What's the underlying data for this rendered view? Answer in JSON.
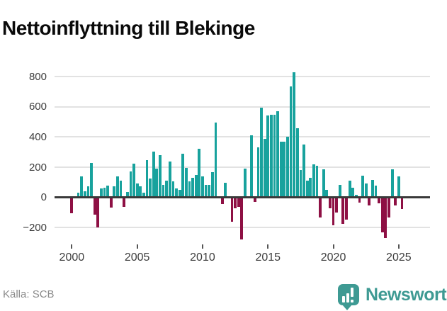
{
  "title": "Nettoinflyttning till Blekinge",
  "source": "Källa: SCB",
  "brand": {
    "name": "Newsworthy"
  },
  "colors": {
    "bar_positive": "#18a29d",
    "bar_negative": "#8e1044",
    "brand_teal": "#3e9a93",
    "grid": "#e2e2e2",
    "axis_line": "#3a3a3a",
    "title_text": "#0a0a0a",
    "axis_text": "#3d3d3d",
    "source_text": "#8a8a8a"
  },
  "chart_data": {
    "type": "bar",
    "title": "Nettoinflyttning till Blekinge",
    "xlabel": "",
    "ylabel": "",
    "grid": true,
    "legend": false,
    "ylim": [
      -300,
      860
    ],
    "yticks": [
      800,
      600,
      400,
      200,
      0,
      -200
    ],
    "x_tick_labels": [
      "2000",
      "2005",
      "2010",
      "2015",
      "2020",
      "2025"
    ],
    "x_tick_indices": [
      0,
      20,
      40,
      60,
      80,
      100
    ],
    "x": [
      "2000Q1",
      "2000Q2",
      "2000Q3",
      "2000Q4",
      "2001Q1",
      "2001Q2",
      "2001Q3",
      "2001Q4",
      "2002Q1",
      "2002Q2",
      "2002Q3",
      "2002Q4",
      "2003Q1",
      "2003Q2",
      "2003Q3",
      "2003Q4",
      "2004Q1",
      "2004Q2",
      "2004Q3",
      "2004Q4",
      "2005Q1",
      "2005Q2",
      "2005Q3",
      "2005Q4",
      "2006Q1",
      "2006Q2",
      "2006Q3",
      "2006Q4",
      "2007Q1",
      "2007Q2",
      "2007Q3",
      "2007Q4",
      "2008Q1",
      "2008Q2",
      "2008Q3",
      "2008Q4",
      "2009Q1",
      "2009Q2",
      "2009Q3",
      "2009Q4",
      "2010Q1",
      "2010Q2",
      "2010Q3",
      "2010Q4",
      "2011Q1",
      "2011Q2",
      "2011Q3",
      "2011Q4",
      "2012Q1",
      "2012Q2",
      "2012Q3",
      "2012Q4",
      "2013Q1",
      "2013Q2",
      "2013Q3",
      "2013Q4",
      "2014Q1",
      "2014Q2",
      "2014Q3",
      "2014Q4",
      "2015Q1",
      "2015Q2",
      "2015Q3",
      "2015Q4",
      "2016Q1",
      "2016Q2",
      "2016Q3",
      "2016Q4",
      "2017Q1",
      "2017Q2",
      "2017Q3",
      "2017Q4",
      "2018Q1",
      "2018Q2",
      "2018Q3",
      "2018Q4",
      "2019Q1",
      "2019Q2",
      "2019Q3",
      "2019Q4",
      "2020Q1",
      "2020Q2",
      "2020Q3",
      "2020Q4",
      "2021Q1",
      "2021Q2",
      "2021Q3",
      "2021Q4",
      "2022Q1",
      "2022Q2",
      "2022Q3",
      "2022Q4",
      "2023Q1",
      "2023Q2",
      "2023Q3",
      "2023Q4",
      "2024Q1",
      "2024Q2",
      "2024Q3",
      "2024Q4",
      "2025Q1",
      "2025Q2"
    ],
    "values": [
      -95,
      0,
      28,
      134,
      37,
      70,
      223,
      -105,
      -189,
      56,
      61,
      72,
      -61,
      67,
      134,
      106,
      -57,
      31,
      166,
      220,
      86,
      70,
      28,
      241,
      120,
      300,
      186,
      277,
      78,
      108,
      233,
      102,
      56,
      48,
      286,
      189,
      103,
      125,
      142,
      319,
      134,
      77,
      80,
      161,
      489,
      0,
      -34,
      92,
      0,
      -155,
      -64,
      -55,
      -272,
      184,
      0,
      408,
      -23,
      325,
      589,
      384,
      536,
      541,
      541,
      564,
      364,
      363,
      395,
      728,
      825,
      455,
      178,
      345,
      105,
      127,
      213,
      205,
      -127,
      181,
      48,
      -64,
      -178,
      -92,
      80,
      -167,
      -139,
      106,
      58,
      14,
      -25,
      140,
      88,
      -45,
      110,
      73,
      -30,
      -225,
      -260,
      -125,
      180,
      -44,
      134,
      -69
    ]
  }
}
